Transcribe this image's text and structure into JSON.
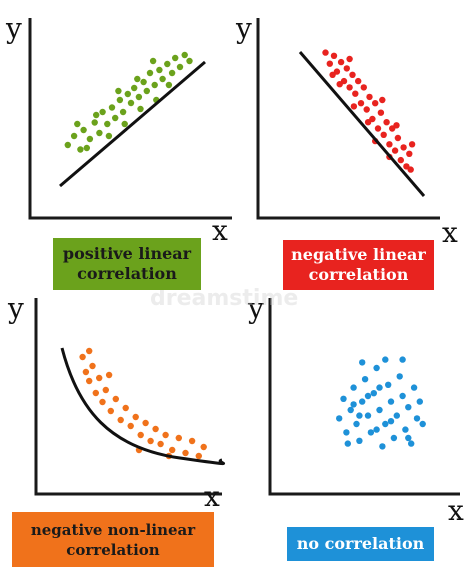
{
  "colors": {
    "axis": "#1a1a1a",
    "trend": "#111111",
    "positive": "#6ba21c",
    "negative": "#e8231f",
    "nonlinear": "#f0721b",
    "none": "#1e91d8"
  },
  "watermark": "dreamstime",
  "panels": [
    {
      "id": "positive",
      "ylabel": "y",
      "xlabel": "x",
      "caption": [
        "positive linear",
        "correlation"
      ],
      "points": [
        [
          0.1,
          0.3
        ],
        [
          0.14,
          0.36
        ],
        [
          0.18,
          0.27
        ],
        [
          0.2,
          0.4
        ],
        [
          0.24,
          0.34
        ],
        [
          0.27,
          0.45
        ],
        [
          0.3,
          0.38
        ],
        [
          0.32,
          0.52
        ],
        [
          0.35,
          0.44
        ],
        [
          0.38,
          0.55
        ],
        [
          0.4,
          0.48
        ],
        [
          0.43,
          0.6
        ],
        [
          0.45,
          0.52
        ],
        [
          0.48,
          0.64
        ],
        [
          0.5,
          0.58
        ],
        [
          0.52,
          0.68
        ],
        [
          0.55,
          0.62
        ],
        [
          0.58,
          0.72
        ],
        [
          0.6,
          0.66
        ],
        [
          0.62,
          0.78
        ],
        [
          0.65,
          0.7
        ],
        [
          0.68,
          0.8
        ],
        [
          0.7,
          0.74
        ],
        [
          0.73,
          0.84
        ],
        [
          0.76,
          0.78
        ],
        [
          0.78,
          0.88
        ],
        [
          0.81,
          0.82
        ],
        [
          0.84,
          0.9
        ],
        [
          0.87,
          0.86
        ],
        [
          0.22,
          0.28
        ],
        [
          0.36,
          0.36
        ],
        [
          0.46,
          0.44
        ],
        [
          0.56,
          0.54
        ],
        [
          0.66,
          0.6
        ],
        [
          0.74,
          0.7
        ],
        [
          0.28,
          0.5
        ],
        [
          0.42,
          0.66
        ],
        [
          0.54,
          0.74
        ],
        [
          0.64,
          0.86
        ],
        [
          0.16,
          0.44
        ]
      ]
    },
    {
      "id": "negative",
      "ylabel": "y",
      "xlabel": "x",
      "caption": [
        "negative linear",
        "correlation"
      ],
      "points": [
        [
          0.25,
          0.92
        ],
        [
          0.28,
          0.85
        ],
        [
          0.31,
          0.9
        ],
        [
          0.33,
          0.8
        ],
        [
          0.36,
          0.86
        ],
        [
          0.38,
          0.74
        ],
        [
          0.4,
          0.82
        ],
        [
          0.42,
          0.7
        ],
        [
          0.44,
          0.78
        ],
        [
          0.46,
          0.66
        ],
        [
          0.48,
          0.74
        ],
        [
          0.5,
          0.6
        ],
        [
          0.52,
          0.7
        ],
        [
          0.54,
          0.56
        ],
        [
          0.56,
          0.64
        ],
        [
          0.58,
          0.5
        ],
        [
          0.6,
          0.6
        ],
        [
          0.62,
          0.44
        ],
        [
          0.64,
          0.54
        ],
        [
          0.66,
          0.4
        ],
        [
          0.68,
          0.48
        ],
        [
          0.7,
          0.34
        ],
        [
          0.72,
          0.44
        ],
        [
          0.74,
          0.3
        ],
        [
          0.76,
          0.38
        ],
        [
          0.78,
          0.24
        ],
        [
          0.8,
          0.32
        ],
        [
          0.82,
          0.2
        ],
        [
          0.84,
          0.28
        ],
        [
          0.3,
          0.78
        ],
        [
          0.35,
          0.72
        ],
        [
          0.45,
          0.58
        ],
        [
          0.55,
          0.48
        ],
        [
          0.65,
          0.62
        ],
        [
          0.75,
          0.46
        ],
        [
          0.85,
          0.18
        ],
        [
          0.86,
          0.34
        ],
        [
          0.42,
          0.88
        ],
        [
          0.6,
          0.36
        ],
        [
          0.7,
          0.26
        ]
      ]
    },
    {
      "id": "nonlinear",
      "ylabel": "y",
      "xlabel": "x",
      "caption": [
        "negative non-linear",
        "correlation"
      ],
      "points": [
        [
          0.16,
          0.82
        ],
        [
          0.18,
          0.72
        ],
        [
          0.2,
          0.66
        ],
        [
          0.22,
          0.76
        ],
        [
          0.24,
          0.58
        ],
        [
          0.26,
          0.68
        ],
        [
          0.28,
          0.52
        ],
        [
          0.3,
          0.6
        ],
        [
          0.33,
          0.46
        ],
        [
          0.36,
          0.54
        ],
        [
          0.39,
          0.4
        ],
        [
          0.42,
          0.48
        ],
        [
          0.45,
          0.36
        ],
        [
          0.48,
          0.42
        ],
        [
          0.51,
          0.3
        ],
        [
          0.54,
          0.38
        ],
        [
          0.57,
          0.26
        ],
        [
          0.6,
          0.34
        ],
        [
          0.63,
          0.24
        ],
        [
          0.66,
          0.3
        ],
        [
          0.7,
          0.2
        ],
        [
          0.74,
          0.28
        ],
        [
          0.78,
          0.18
        ],
        [
          0.82,
          0.26
        ],
        [
          0.86,
          0.16
        ],
        [
          0.89,
          0.22
        ],
        [
          0.2,
          0.86
        ],
        [
          0.32,
          0.7
        ],
        [
          0.5,
          0.2
        ],
        [
          0.68,
          0.16
        ]
      ]
    },
    {
      "id": "none",
      "ylabel": "y",
      "xlabel": "x",
      "caption": [
        "no correlation"
      ],
      "points": [
        [
          0.3,
          0.44
        ],
        [
          0.33,
          0.58
        ],
        [
          0.35,
          0.34
        ],
        [
          0.38,
          0.5
        ],
        [
          0.4,
          0.66
        ],
        [
          0.42,
          0.4
        ],
        [
          0.44,
          0.28
        ],
        [
          0.46,
          0.56
        ],
        [
          0.48,
          0.72
        ],
        [
          0.5,
          0.46
        ],
        [
          0.52,
          0.34
        ],
        [
          0.54,
          0.62
        ],
        [
          0.56,
          0.8
        ],
        [
          0.58,
          0.5
        ],
        [
          0.6,
          0.24
        ],
        [
          0.62,
          0.4
        ],
        [
          0.64,
          0.68
        ],
        [
          0.66,
          0.56
        ],
        [
          0.68,
          0.3
        ],
        [
          0.7,
          0.46
        ],
        [
          0.72,
          0.74
        ],
        [
          0.74,
          0.6
        ],
        [
          0.76,
          0.36
        ],
        [
          0.78,
          0.52
        ],
        [
          0.8,
          0.26
        ],
        [
          0.82,
          0.66
        ],
        [
          0.84,
          0.44
        ],
        [
          0.86,
          0.56
        ],
        [
          0.36,
          0.26
        ],
        [
          0.46,
          0.84
        ],
        [
          0.62,
          0.86
        ],
        [
          0.74,
          0.86
        ],
        [
          0.56,
          0.36
        ],
        [
          0.66,
          0.42
        ],
        [
          0.4,
          0.54
        ],
        [
          0.5,
          0.6
        ],
        [
          0.88,
          0.4
        ],
        [
          0.78,
          0.3
        ],
        [
          0.58,
          0.66
        ],
        [
          0.44,
          0.46
        ]
      ]
    }
  ]
}
